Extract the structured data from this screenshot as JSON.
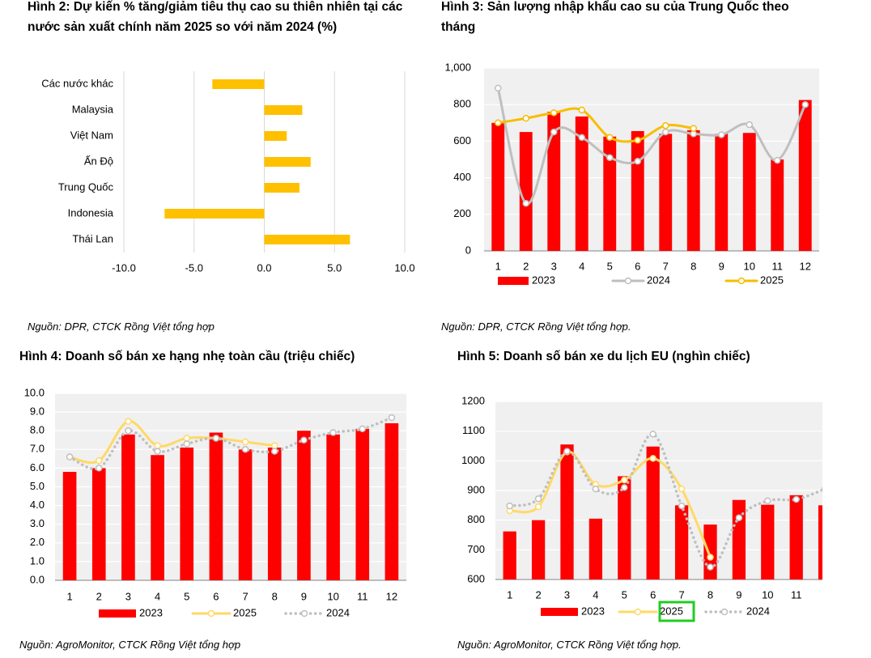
{
  "chart_data": [
    {
      "type": "hbar",
      "title": "Hình 2: Dự kiến % tăng/giảm tiêu thụ cao su thiên nhiên tại các nước sản xuất chính năm 2025 so với năm 2024 (%)",
      "categories": [
        "Các nước khác",
        "Malaysia",
        "Việt Nam",
        "Ấn Độ",
        "Trung Quốc",
        "Indonesia",
        "Thái Lan"
      ],
      "values": [
        -3.7,
        2.7,
        1.6,
        3.3,
        2.5,
        -7.1,
        6.1
      ],
      "color": "#ffc000",
      "xlim": [
        -10,
        10
      ],
      "xticks": [
        {
          "value": -10,
          "label": "-10.0"
        },
        {
          "value": -5,
          "label": "-5.0"
        },
        {
          "value": 0,
          "label": "0.0"
        },
        {
          "value": 5,
          "label": "5.0"
        },
        {
          "value": 10,
          "label": "10.0"
        }
      ],
      "grid": true,
      "source": "Nguồn: DPR, CTCK Rồng Việt tổng hợp"
    },
    {
      "type": "combo",
      "title": "Hình 3: Sản lượng nhập khẩu cao su của Trung Quốc theo tháng",
      "categories": [
        "1",
        "2",
        "3",
        "4",
        "5",
        "6",
        "7",
        "8",
        "9",
        "10",
        "11",
        "12"
      ],
      "series": [
        {
          "name": "2023",
          "type": "bar",
          "color": "#ff0000",
          "values": [
            700,
            650,
            760,
            735,
            625,
            655,
            640,
            660,
            640,
            645,
            500,
            825
          ]
        },
        {
          "name": "2024",
          "type": "line",
          "color": "#bfbfbf",
          "dotted": false,
          "values": [
            890,
            260,
            650,
            620,
            510,
            490,
            650,
            640,
            635,
            690,
            495,
            800
          ]
        },
        {
          "name": "2025",
          "type": "line",
          "color": "#f7bd00",
          "dotted": false,
          "values": [
            700,
            725,
            755,
            770,
            620,
            605,
            685,
            670,
            null,
            null,
            null,
            null
          ]
        }
      ],
      "ylim": [
        0,
        1000
      ],
      "yticks": [
        0,
        200,
        400,
        600,
        800,
        {
          "value": 1000,
          "label": "1,000"
        }
      ],
      "grid": true,
      "source": "Nguồn: DPR, CTCK Rồng Việt tổng hợp."
    },
    {
      "type": "combo",
      "title": "Hình 4: Doanh số bán xe hạng nhẹ toàn cầu (triệu chiếc)",
      "categories": [
        "1",
        "2",
        "3",
        "4",
        "5",
        "6",
        "7",
        "8",
        "9",
        "10",
        "11",
        "12"
      ],
      "series": [
        {
          "name": "2023",
          "type": "bar",
          "color": "#ff0000",
          "values": [
            5.8,
            6.0,
            7.8,
            6.7,
            7.1,
            7.9,
            7.0,
            7.1,
            8.0,
            7.8,
            8.1,
            8.4
          ]
        },
        {
          "name": "2025",
          "type": "line",
          "color": "#ffd966",
          "dotted": false,
          "values": [
            6.6,
            6.4,
            8.5,
            7.2,
            7.6,
            7.6,
            7.4,
            7.2,
            null,
            null,
            null,
            null
          ]
        },
        {
          "name": "2024",
          "type": "line",
          "color": "#bfbfbf",
          "dotted": true,
          "values": [
            6.6,
            6.0,
            8.0,
            6.9,
            7.3,
            7.6,
            7.0,
            6.9,
            7.5,
            7.9,
            8.1,
            8.7
          ]
        }
      ],
      "ylim": [
        0,
        10
      ],
      "yticks": [
        {
          "value": 0,
          "label": "0.0"
        },
        {
          "value": 1,
          "label": "1.0"
        },
        {
          "value": 2,
          "label": "2.0"
        },
        {
          "value": 3,
          "label": "3.0"
        },
        {
          "value": 4,
          "label": "4.0"
        },
        {
          "value": 5,
          "label": "5.0"
        },
        {
          "value": 6,
          "label": "6.0"
        },
        {
          "value": 7,
          "label": "7.0"
        },
        {
          "value": 8,
          "label": "8.0"
        },
        {
          "value": 9,
          "label": "9.0"
        },
        {
          "value": 10,
          "label": "10.0"
        }
      ],
      "grid": true,
      "source": "Nguồn: AgroMonitor, CTCK Rồng Việt tổng hợp"
    },
    {
      "type": "combo",
      "title": "Hình 5:  Doanh số bán xe du lịch EU (nghìn chiếc)",
      "categories": [
        "1",
        "2",
        "3",
        "4",
        "5",
        "6",
        "7",
        "8",
        "9",
        "10",
        "11",
        null
      ],
      "series": [
        {
          "name": "2023",
          "type": "bar",
          "color": "#ff0000",
          "values": [
            762,
            800,
            1055,
            805,
            948,
            1048,
            850,
            785,
            868,
            852,
            884,
            850
          ]
        },
        {
          "name": "2025",
          "type": "line",
          "color": "#ffd966",
          "dotted": false,
          "values": [
            832,
            845,
            1030,
            920,
            935,
            1008,
            905,
            675,
            null,
            null,
            null,
            null
          ]
        },
        {
          "name": "2024",
          "type": "line",
          "color": "#bfbfbf",
          "dotted": true,
          "values": [
            848,
            872,
            1032,
            905,
            910,
            1090,
            848,
            642,
            808,
            865,
            870,
            905
          ]
        }
      ],
      "ylim": [
        600,
        1200
      ],
      "yticks": [
        600,
        700,
        800,
        900,
        1000,
        1100,
        1200
      ],
      "grid": true,
      "source": "Nguồn: AgroMonitor, CTCK Rồng Việt tổng hợp."
    }
  ]
}
